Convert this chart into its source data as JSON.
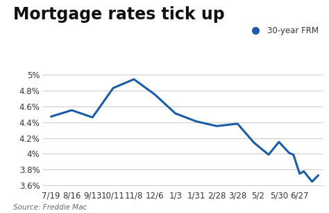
{
  "title": "Mortgage rates tick up",
  "legend_label": "30-year FRM",
  "source_text": "Source: Freddie Mac",
  "x_labels": [
    "7/19",
    "8/16",
    "9/13",
    "10/11",
    "11/8",
    "12/6",
    "1/3",
    "1/31",
    "2/28",
    "3/28",
    "5/2",
    "5/30",
    "6/27"
  ],
  "x_tick_positions": [
    0,
    1,
    2,
    3,
    4,
    5,
    6,
    7,
    8,
    9,
    10,
    11,
    12
  ],
  "y_values": [
    4.47,
    4.55,
    4.46,
    4.83,
    4.94,
    4.75,
    4.51,
    4.41,
    4.35,
    4.38,
    4.14,
    3.99,
    4.15,
    4.01,
    3.99,
    3.75,
    3.78,
    3.65,
    3.73
  ],
  "x_positions": [
    0,
    1,
    2,
    3,
    4,
    5,
    6,
    7,
    8,
    9,
    9.8,
    10.5,
    11,
    11.5,
    11.7,
    12,
    12.2,
    12.6,
    12.9
  ],
  "line_color": "#1a5ca8",
  "line_width": 2.2,
  "marker_color": "#1a5ca8",
  "marker_size": 7,
  "background_color": "#ffffff",
  "grid_color": "#cccccc",
  "ylim": [
    3.55,
    5.08
  ],
  "yticks": [
    3.6,
    3.8,
    4.0,
    4.2,
    4.4,
    4.6,
    4.8,
    5.0
  ],
  "ytick_labels": [
    "3.6%",
    "3.8%",
    "4%",
    "4.2%",
    "4.4%",
    "4.6%",
    "4.8%",
    "5%"
  ],
  "title_fontsize": 17,
  "axis_fontsize": 8.5,
  "source_fontsize": 7.5
}
